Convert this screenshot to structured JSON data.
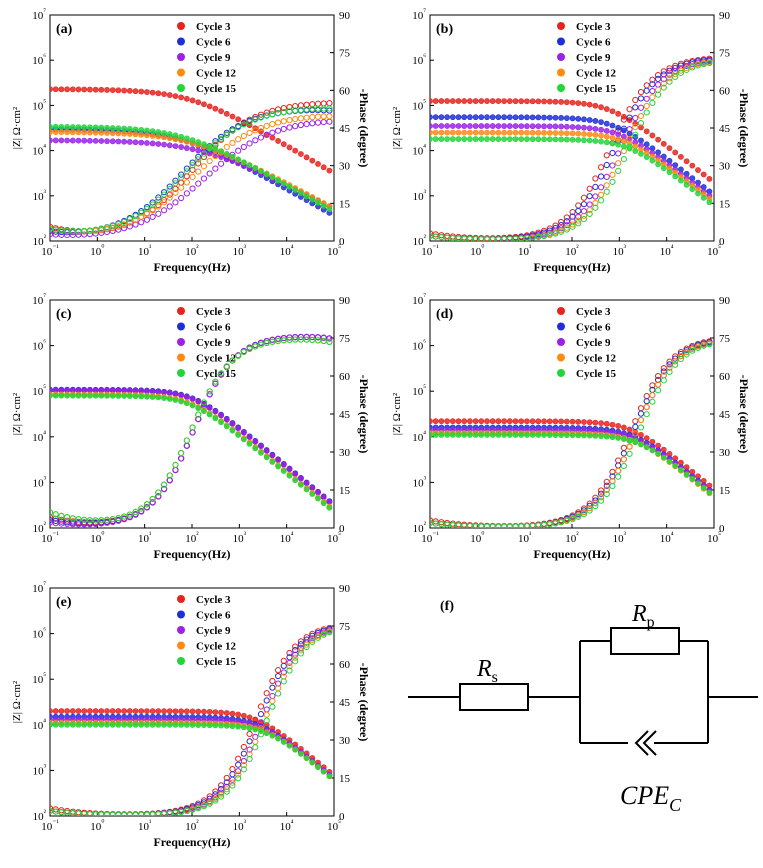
{
  "colors": {
    "Cycle 3": "#e8231e",
    "Cycle 6": "#1f2fd6",
    "Cycle 9": "#9a23e6",
    "Cycle 12": "#ff8a10",
    "Cycle 15": "#22d63a"
  },
  "chart_data": [
    {
      "panel_label": "(a)",
      "type": "scatter",
      "xlabel": "Frequency(Hz)",
      "ylabel_left": "|Z| Ω·cm²",
      "ylabel_right": "-Phase (degree)",
      "x_scale": "log",
      "xlim": [
        0.1,
        100000
      ],
      "x_ticks": [
        "10⁻¹",
        "10⁰",
        "10¹",
        "10²",
        "10³",
        "10⁴",
        "10⁵"
      ],
      "y_left_scale": "log",
      "y_left_lim": [
        100,
        10000000
      ],
      "y_left_ticks": [
        "10²",
        "10³",
        "10⁴",
        "10⁵",
        "10⁶",
        "10⁷"
      ],
      "y_right_lim": [
        0,
        90
      ],
      "y_right_ticks": [
        "0",
        "15",
        "30",
        "45",
        "60",
        "75",
        "90"
      ],
      "legend": [
        "Cycle 3",
        "Cycle 6",
        "Cycle 9",
        "Cycle 12",
        "Cycle 15"
      ],
      "series": [
        {
          "name": "Cycle 3",
          "Rs": 13,
          "R": 230000,
          "tau": 0.0016,
          "n": 0.62,
          "phase_low": 5,
          "marker": "filled"
        },
        {
          "name": "Cycle 6",
          "Rs": 13,
          "R": 30000,
          "tau": 0.0025,
          "n": 0.6,
          "phase_low": 3,
          "marker": "filled"
        },
        {
          "name": "Cycle 9",
          "Rs": 7,
          "R": 17000,
          "tau": 0.0009,
          "n": 0.55,
          "phase_low": 2,
          "marker": "filled"
        },
        {
          "name": "Cycle 12",
          "Rs": 8,
          "R": 26000,
          "tau": 0.0015,
          "n": 0.57,
          "phase_low": 4,
          "marker": "filled"
        },
        {
          "name": "Cycle 15",
          "Rs": 6,
          "R": 34000,
          "tau": 0.0022,
          "n": 0.6,
          "phase_low": 4,
          "marker": "filled"
        }
      ]
    },
    {
      "panel_label": "(b)",
      "type": "scatter",
      "xlabel": "Frequency(Hz)",
      "ylabel_left": "|Z| Ω·cm²",
      "ylabel_right": "-Phase (degree)",
      "x_scale": "log",
      "xlim": [
        0.1,
        100000
      ],
      "x_ticks": [
        "10⁻¹",
        "10⁰",
        "10¹",
        "10²",
        "10³",
        "10⁴",
        "10⁵"
      ],
      "y_left_scale": "log",
      "y_left_lim": [
        100,
        10000000
      ],
      "y_left_ticks": [
        "10²",
        "10³",
        "10⁴",
        "10⁵",
        "10⁶",
        "10⁷"
      ],
      "y_right_lim": [
        0,
        90
      ],
      "y_right_ticks": [
        "0",
        "15",
        "30",
        "45",
        "60",
        "75",
        "90"
      ],
      "legend": [
        "Cycle 3",
        "Cycle 6",
        "Cycle 9",
        "Cycle 12",
        "Cycle 15"
      ],
      "series": [
        {
          "name": "Cycle 3",
          "Rs": 8,
          "R": 125000,
          "tau": 0.00025,
          "n": 0.82,
          "phase_low": 3
        },
        {
          "name": "Cycle 6",
          "Rs": 9,
          "R": 55000,
          "tau": 0.0002,
          "n": 0.82,
          "phase_low": 2
        },
        {
          "name": "Cycle 9",
          "Rs": 10,
          "R": 35000,
          "tau": 0.00015,
          "n": 0.82,
          "phase_low": 2
        },
        {
          "name": "Cycle 12",
          "Rs": 11,
          "R": 25000,
          "tau": 0.00012,
          "n": 0.82,
          "phase_low": 2
        },
        {
          "name": "Cycle 15",
          "Rs": 10,
          "R": 18000,
          "tau": 0.0001,
          "n": 0.82,
          "phase_low": 2
        }
      ]
    },
    {
      "panel_label": "(c)",
      "type": "scatter",
      "xlabel": "Frequency(Hz)",
      "ylabel_left": "|Z| Ω·cm²",
      "ylabel_right": "-Phase (degree)",
      "x_scale": "log",
      "xlim": [
        0.1,
        100000
      ],
      "x_ticks": [
        "10⁻¹",
        "10⁰",
        "10¹",
        "10²",
        "10³",
        "10⁴",
        "10⁵"
      ],
      "y_left_scale": "log",
      "y_left_lim": [
        100,
        10000000
      ],
      "y_left_ticks": [
        "10²",
        "10³",
        "10⁴",
        "10⁵",
        "10⁶",
        "10⁷"
      ],
      "y_right_lim": [
        0,
        90
      ],
      "y_right_ticks": [
        "0",
        "15",
        "30",
        "45",
        "60",
        "75",
        "90"
      ],
      "legend": [
        "Cycle 3",
        "Cycle 6",
        "Cycle 9",
        "Cycle 12",
        "Cycle 15"
      ],
      "series": [
        {
          "name": "Cycle 3",
          "Rs": 10,
          "R": 105000,
          "tau": 0.0015,
          "n": 0.85,
          "phase_low": 4
        },
        {
          "name": "Cycle 6",
          "Rs": 10,
          "R": 108000,
          "tau": 0.0015,
          "n": 0.85,
          "phase_low": 3
        },
        {
          "name": "Cycle 9",
          "Rs": 10,
          "R": 104000,
          "tau": 0.0015,
          "n": 0.85,
          "phase_low": 2
        },
        {
          "name": "Cycle 12",
          "Rs": 10,
          "R": 85000,
          "tau": 0.0017,
          "n": 0.84,
          "phase_low": 6
        },
        {
          "name": "Cycle 15",
          "Rs": 10,
          "R": 80000,
          "tau": 0.0017,
          "n": 0.84,
          "phase_low": 6
        }
      ]
    },
    {
      "panel_label": "(d)",
      "type": "scatter",
      "xlabel": "Frequency(Hz)",
      "ylabel_left": "|Z| Ω·cm²",
      "ylabel_right": "-Phase (degree)",
      "x_scale": "log",
      "xlim": [
        0.1,
        100000
      ],
      "x_ticks": [
        "10⁻¹",
        "10⁰",
        "10¹",
        "10²",
        "10³",
        "10⁴",
        "10⁵"
      ],
      "y_left_scale": "log",
      "y_left_lim": [
        100,
        10000000
      ],
      "y_left_ticks": [
        "10²",
        "10³",
        "10⁴",
        "10⁵",
        "10⁶",
        "10⁷"
      ],
      "y_right_lim": [
        0,
        90
      ],
      "y_right_ticks": [
        "0",
        "15",
        "30",
        "45",
        "60",
        "75",
        "90"
      ],
      "legend": [
        "Cycle 3",
        "Cycle 6",
        "Cycle 9",
        "Cycle 12",
        "Cycle 15"
      ],
      "series": [
        {
          "name": "Cycle 3",
          "Rs": 10,
          "R": 22000,
          "tau": 9e-05,
          "n": 0.85,
          "phase_low": 3
        },
        {
          "name": "Cycle 6",
          "Rs": 10,
          "R": 16000,
          "tau": 8e-05,
          "n": 0.85,
          "phase_low": 2
        },
        {
          "name": "Cycle 9",
          "Rs": 10,
          "R": 14000,
          "tau": 7e-05,
          "n": 0.85,
          "phase_low": 2
        },
        {
          "name": "Cycle 12",
          "Rs": 10,
          "R": 12000,
          "tau": 7e-05,
          "n": 0.85,
          "phase_low": 2
        },
        {
          "name": "Cycle 15",
          "Rs": 10,
          "R": 11000,
          "tau": 6e-05,
          "n": 0.85,
          "phase_low": 2
        }
      ]
    },
    {
      "panel_label": "(e)",
      "type": "scatter",
      "xlabel": "Frequency(Hz)",
      "ylabel_left": "|Z| Ω·cm²",
      "ylabel_right": "-Phase (degree)",
      "x_scale": "log",
      "xlim": [
        0.1,
        100000
      ],
      "x_ticks": [
        "10⁻¹",
        "10⁰",
        "10¹",
        "10²",
        "10³",
        "10⁴",
        "10⁵"
      ],
      "y_left_scale": "log",
      "y_left_lim": [
        100,
        10000000
      ],
      "y_left_ticks": [
        "10²",
        "10³",
        "10⁴",
        "10⁵",
        "10⁶",
        "10⁷"
      ],
      "y_right_lim": [
        0,
        90
      ],
      "y_right_ticks": [
        "0",
        "15",
        "30",
        "45",
        "60",
        "75",
        "90"
      ],
      "legend": [
        "Cycle 3",
        "Cycle 6",
        "Cycle 9",
        "Cycle 12",
        "Cycle 15"
      ],
      "series": [
        {
          "name": "Cycle 3",
          "Rs": 10,
          "R": 20000,
          "tau": 7e-05,
          "n": 0.86,
          "phase_low": 3
        },
        {
          "name": "Cycle 6",
          "Rs": 10,
          "R": 15000,
          "tau": 6e-05,
          "n": 0.86,
          "phase_low": 2
        },
        {
          "name": "Cycle 9",
          "Rs": 10,
          "R": 13000,
          "tau": 5e-05,
          "n": 0.86,
          "phase_low": 2
        },
        {
          "name": "Cycle 12",
          "Rs": 10,
          "R": 11000,
          "tau": 4.5e-05,
          "n": 0.86,
          "phase_low": 2
        },
        {
          "name": "Cycle 15",
          "Rs": 10,
          "R": 10000,
          "tau": 4e-05,
          "n": 0.86,
          "phase_low": 2
        }
      ]
    }
  ],
  "circuit": {
    "panel_label": "(f)",
    "rs_label": "R",
    "rs_sub": "s",
    "rp_label": "R",
    "rp_sub": "p",
    "cpe_label": "CPE",
    "cpe_sub": "C"
  }
}
